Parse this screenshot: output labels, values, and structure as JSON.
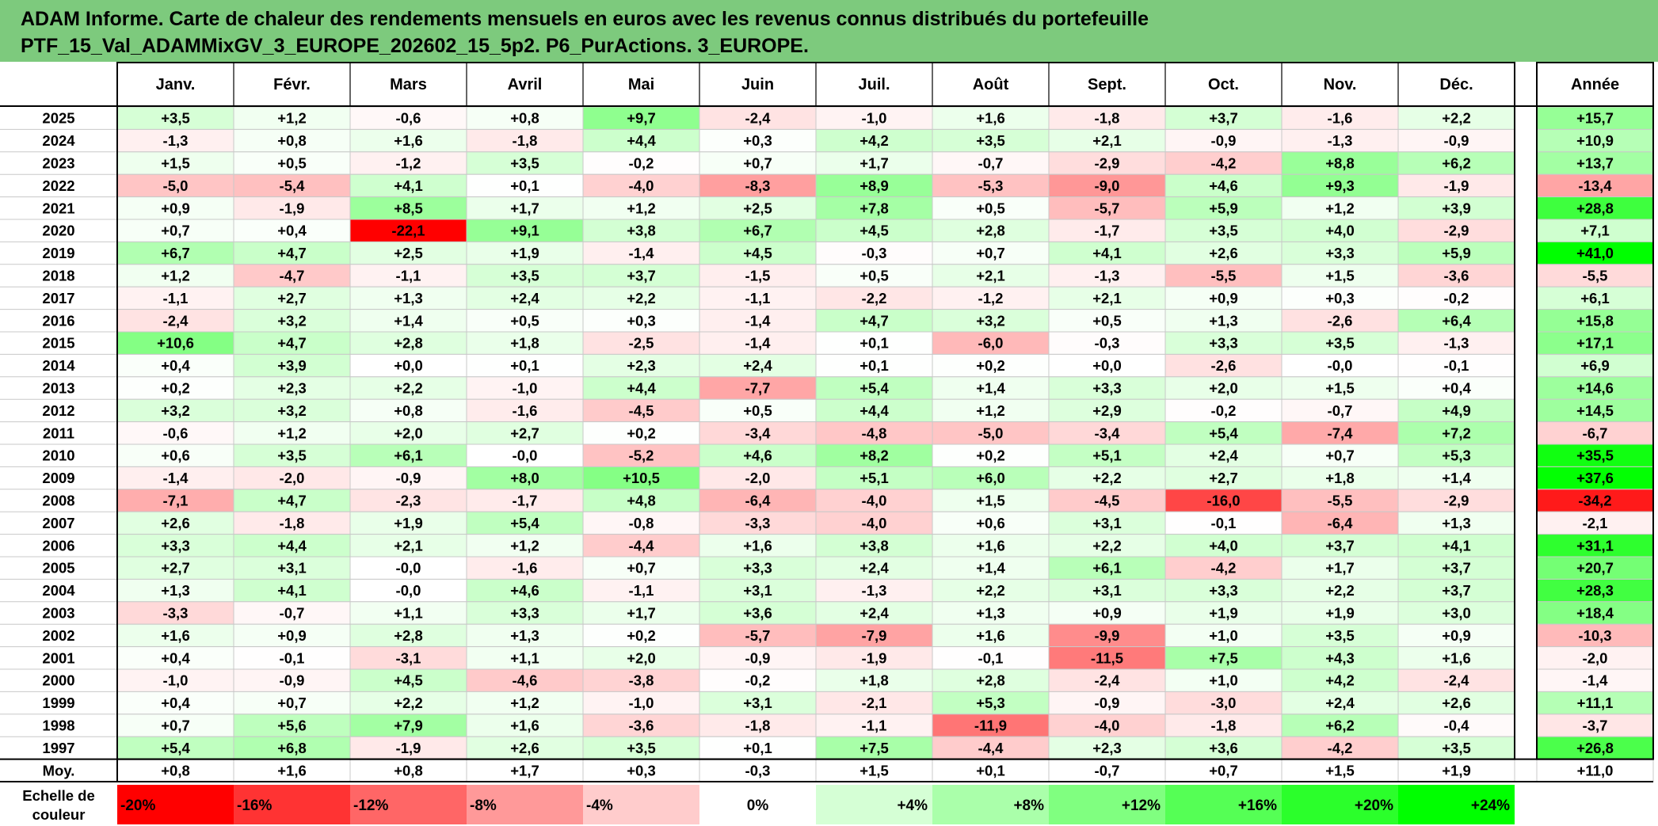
{
  "title_line1": "ADAM Informe. Carte de chaleur des rendements mensuels en euros avec les revenus connus distribués du portefeuille",
  "title_line2": "PTF_15_Val_ADAMMixGV_3_EUROPE_202602_15_5p2. P6_PurActions. 3_EUROPE.",
  "chart_data": {
    "type": "heatmap",
    "columns": [
      "Janv.",
      "Févr.",
      "Mars",
      "Avril",
      "Mai",
      "Juin",
      "Juil.",
      "Août",
      "Sept.",
      "Oct.",
      "Nov.",
      "Déc."
    ],
    "year_column": "Année",
    "rows": [
      {
        "year": "2025",
        "values": [
          "+3,5",
          "+1,2",
          "-0,6",
          "+0,8",
          "+9,7",
          "-2,4",
          "-1,0",
          "+1,6",
          "-1,8",
          "+3,7",
          "-1,6",
          "+2,2"
        ],
        "annual": "+15,7"
      },
      {
        "year": "2024",
        "values": [
          "-1,3",
          "+0,8",
          "+1,6",
          "-1,8",
          "+4,4",
          "+0,3",
          "+4,2",
          "+3,5",
          "+2,1",
          "-0,9",
          "-1,3",
          "-0,9"
        ],
        "annual": "+10,9"
      },
      {
        "year": "2023",
        "values": [
          "+1,5",
          "+0,5",
          "-1,2",
          "+3,5",
          "-0,2",
          "+0,7",
          "+1,7",
          "-0,7",
          "-2,9",
          "-4,2",
          "+8,8",
          "+6,2"
        ],
        "annual": "+13,7"
      },
      {
        "year": "2022",
        "values": [
          "-5,0",
          "-5,4",
          "+4,1",
          "+0,1",
          "-4,0",
          "-8,3",
          "+8,9",
          "-5,3",
          "-9,0",
          "+4,6",
          "+9,3",
          "-1,9"
        ],
        "annual": "-13,4"
      },
      {
        "year": "2021",
        "values": [
          "+0,9",
          "-1,9",
          "+8,5",
          "+1,7",
          "+1,2",
          "+2,5",
          "+7,8",
          "+0,5",
          "-5,7",
          "+5,9",
          "+1,2",
          "+3,9"
        ],
        "annual": "+28,8"
      },
      {
        "year": "2020",
        "values": [
          "+0,7",
          "+0,4",
          "-22,1",
          "+9,1",
          "+3,8",
          "+6,7",
          "+4,5",
          "+2,8",
          "-1,7",
          "+3,5",
          "+4,0",
          "-2,9"
        ],
        "annual": "+7,1"
      },
      {
        "year": "2019",
        "values": [
          "+6,7",
          "+4,7",
          "+2,5",
          "+1,9",
          "-1,4",
          "+4,5",
          "-0,3",
          "+0,7",
          "+4,1",
          "+2,6",
          "+3,3",
          "+5,9"
        ],
        "annual": "+41,0"
      },
      {
        "year": "2018",
        "values": [
          "+1,2",
          "-4,7",
          "-1,1",
          "+3,5",
          "+3,7",
          "-1,5",
          "+0,5",
          "+2,1",
          "-1,3",
          "-5,5",
          "+1,5",
          "-3,6"
        ],
        "annual": "-5,5"
      },
      {
        "year": "2017",
        "values": [
          "-1,1",
          "+2,7",
          "+1,3",
          "+2,4",
          "+2,2",
          "-1,1",
          "-2,2",
          "-1,2",
          "+2,1",
          "+0,9",
          "+0,3",
          "-0,2"
        ],
        "annual": "+6,1"
      },
      {
        "year": "2016",
        "values": [
          "-2,4",
          "+3,2",
          "+1,4",
          "+0,5",
          "+0,3",
          "-1,4",
          "+4,7",
          "+3,2",
          "+0,5",
          "+1,3",
          "-2,6",
          "+6,4"
        ],
        "annual": "+15,8"
      },
      {
        "year": "2015",
        "values": [
          "+10,6",
          "+4,7",
          "+2,8",
          "+1,8",
          "-2,5",
          "-1,4",
          "+0,1",
          "-6,0",
          "-0,3",
          "+3,3",
          "+3,5",
          "-1,3"
        ],
        "annual": "+17,1"
      },
      {
        "year": "2014",
        "values": [
          "+0,4",
          "+3,9",
          "+0,0",
          "+0,1",
          "+2,3",
          "+2,4",
          "+0,1",
          "+0,2",
          "+0,0",
          "-2,6",
          "-0,0",
          "-0,1"
        ],
        "annual": "+6,9"
      },
      {
        "year": "2013",
        "values": [
          "+0,2",
          "+2,3",
          "+2,2",
          "-1,0",
          "+4,4",
          "-7,7",
          "+5,4",
          "+1,4",
          "+3,3",
          "+2,0",
          "+1,5",
          "+0,4"
        ],
        "annual": "+14,6"
      },
      {
        "year": "2012",
        "values": [
          "+3,2",
          "+3,2",
          "+0,8",
          "-1,6",
          "-4,5",
          "+0,5",
          "+4,4",
          "+1,2",
          "+2,9",
          "-0,2",
          "-0,7",
          "+4,9"
        ],
        "annual": "+14,5"
      },
      {
        "year": "2011",
        "values": [
          "-0,6",
          "+1,2",
          "+2,0",
          "+2,7",
          "+0,2",
          "-3,4",
          "-4,8",
          "-5,0",
          "-3,4",
          "+5,4",
          "-7,4",
          "+7,2"
        ],
        "annual": "-6,7"
      },
      {
        "year": "2010",
        "values": [
          "+0,6",
          "+3,5",
          "+6,1",
          "-0,0",
          "-5,2",
          "+4,6",
          "+8,2",
          "+0,2",
          "+5,1",
          "+2,4",
          "+0,7",
          "+5,3"
        ],
        "annual": "+35,5"
      },
      {
        "year": "2009",
        "values": [
          "-1,4",
          "-2,0",
          "-0,9",
          "+8,0",
          "+10,5",
          "-2,0",
          "+5,1",
          "+6,0",
          "+2,2",
          "+2,7",
          "+1,8",
          "+1,4"
        ],
        "annual": "+37,6"
      },
      {
        "year": "2008",
        "values": [
          "-7,1",
          "+4,7",
          "-2,3",
          "-1,7",
          "+4,8",
          "-6,4",
          "-4,0",
          "+1,5",
          "-4,5",
          "-16,0",
          "-5,5",
          "-2,9"
        ],
        "annual": "-34,2"
      },
      {
        "year": "2007",
        "values": [
          "+2,6",
          "-1,8",
          "+1,9",
          "+5,4",
          "-0,8",
          "-3,3",
          "-4,0",
          "+0,6",
          "+3,1",
          "-0,1",
          "-6,4",
          "+1,3"
        ],
        "annual": "-2,1"
      },
      {
        "year": "2006",
        "values": [
          "+3,3",
          "+4,4",
          "+2,1",
          "+1,2",
          "-4,4",
          "+1,6",
          "+3,8",
          "+1,6",
          "+2,2",
          "+4,0",
          "+3,7",
          "+4,1"
        ],
        "annual": "+31,1"
      },
      {
        "year": "2005",
        "values": [
          "+2,7",
          "+3,1",
          "-0,0",
          "-1,6",
          "+0,7",
          "+3,3",
          "+2,4",
          "+1,4",
          "+6,1",
          "-4,2",
          "+1,7",
          "+3,7"
        ],
        "annual": "+20,7"
      },
      {
        "year": "2004",
        "values": [
          "+1,3",
          "+4,1",
          "-0,0",
          "+4,6",
          "-1,1",
          "+3,1",
          "-1,3",
          "+2,2",
          "+3,1",
          "+3,3",
          "+2,2",
          "+3,7"
        ],
        "annual": "+28,3"
      },
      {
        "year": "2003",
        "values": [
          "-3,3",
          "-0,7",
          "+1,1",
          "+3,3",
          "+1,7",
          "+3,6",
          "+2,4",
          "+1,3",
          "+0,9",
          "+1,9",
          "+1,9",
          "+3,0"
        ],
        "annual": "+18,4"
      },
      {
        "year": "2002",
        "values": [
          "+1,6",
          "+0,9",
          "+2,8",
          "+1,3",
          "+0,2",
          "-5,7",
          "-7,9",
          "+1,6",
          "-9,9",
          "+1,0",
          "+3,5",
          "+0,9"
        ],
        "annual": "-10,3"
      },
      {
        "year": "2001",
        "values": [
          "+0,4",
          "-0,1",
          "-3,1",
          "+1,1",
          "+2,0",
          "-0,9",
          "-1,9",
          "-0,1",
          "-11,5",
          "+7,5",
          "+4,3",
          "+1,6"
        ],
        "annual": "-2,0"
      },
      {
        "year": "2000",
        "values": [
          "-1,0",
          "-0,9",
          "+4,5",
          "-4,6",
          "-3,8",
          "-0,2",
          "+1,8",
          "+2,8",
          "-2,4",
          "+1,0",
          "+4,2",
          "-2,4"
        ],
        "annual": "-1,4"
      },
      {
        "year": "1999",
        "values": [
          "+0,4",
          "+0,7",
          "+2,2",
          "+1,2",
          "-1,0",
          "+3,1",
          "-2,1",
          "+5,3",
          "-0,9",
          "-3,0",
          "+2,4",
          "+2,6"
        ],
        "annual": "+11,1"
      },
      {
        "year": "1998",
        "values": [
          "+0,7",
          "+5,6",
          "+7,9",
          "+1,6",
          "-3,6",
          "-1,8",
          "-1,1",
          "-11,9",
          "-4,0",
          "-1,8",
          "+6,2",
          "-0,4"
        ],
        "annual": "-3,7"
      },
      {
        "year": "1997",
        "values": [
          "+5,4",
          "+6,8",
          "-1,9",
          "+2,6",
          "+3,5",
          "+0,1",
          "+7,5",
          "-4,4",
          "+2,3",
          "+3,6",
          "-4,2",
          "+3,5"
        ],
        "annual": "+26,8"
      }
    ],
    "average": {
      "label": "Moy.",
      "values": [
        "+0,8",
        "+1,6",
        "+0,8",
        "+1,7",
        "+0,3",
        "-0,3",
        "+1,5",
        "+0,1",
        "-0,7",
        "+0,7",
        "+1,5",
        "+1,9"
      ],
      "annual": "+11,0"
    },
    "scale": {
      "label_line1": "Echelle de",
      "label_line2": "couleur",
      "stops": [
        "-20%",
        "-16%",
        "-12%",
        "-8%",
        "-4%",
        "0%",
        "+4%",
        "+8%",
        "+12%",
        "+16%",
        "+20%",
        "+24%"
      ],
      "stop_values": [
        -20,
        -16,
        -12,
        -8,
        -4,
        0,
        4,
        8,
        12,
        16,
        20,
        24
      ]
    }
  },
  "colors": {
    "header_band": "#7dca7d",
    "negative": "#ff0000",
    "neutral": "#ffffff",
    "positive": "#00ff00"
  }
}
